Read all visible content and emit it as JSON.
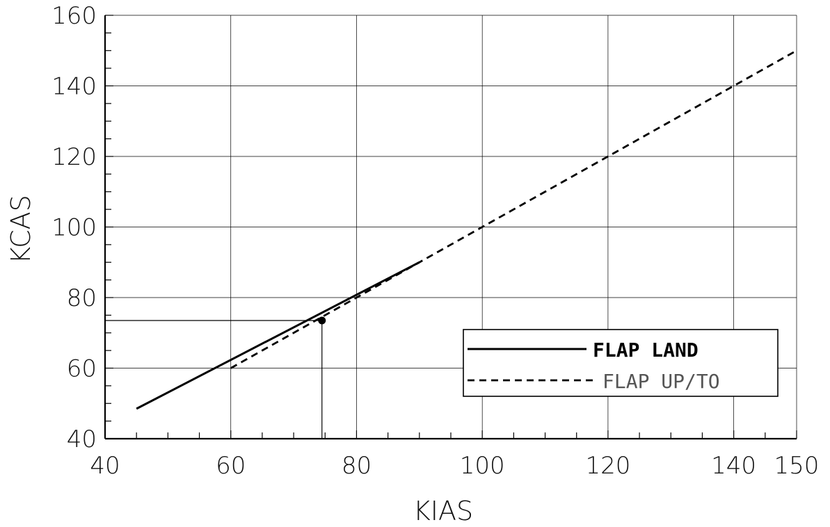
{
  "chart_data": {
    "type": "line",
    "xlabel": "KIAS",
    "ylabel": "KCAS",
    "xlim": [
      40,
      150
    ],
    "ylim": [
      40,
      160
    ],
    "x_ticks": [
      40,
      60,
      80,
      100,
      120,
      140,
      150
    ],
    "y_ticks": [
      40,
      60,
      80,
      100,
      120,
      140,
      160
    ],
    "x_minor_step": 5,
    "y_minor_step": 5,
    "grid": true,
    "legend_position": "lower-right",
    "series": [
      {
        "name": "FLAP LAND",
        "style": "solid",
        "x": [
          45,
          90
        ],
        "y": [
          48.5,
          90
        ]
      },
      {
        "name": "FLAP UP/TO",
        "style": "dashed",
        "x": [
          60,
          150
        ],
        "y": [
          60,
          150
        ]
      }
    ],
    "readout_point": {
      "x": 74.5,
      "y": 73.5
    }
  }
}
